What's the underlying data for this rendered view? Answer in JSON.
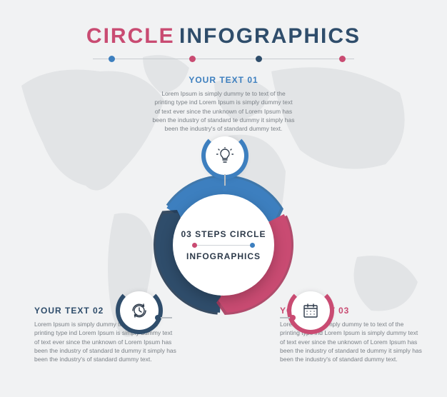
{
  "background_color": "#f1f2f3",
  "map_color": "#c9cccf",
  "title": {
    "word_a": "CIRCLE",
    "word_b": "INFOGRAPHICS",
    "color_a": "#c94b72",
    "color_b": "#2f4d6b",
    "fontsize": 30
  },
  "divider": {
    "line_color": "#c8ccd0",
    "dots": [
      "#3d7fbf",
      "#c94b72",
      "#2f4d6b",
      "#c94b72"
    ]
  },
  "center": {
    "line1": "03 STEPS CIRCLE",
    "line2": "INFOGRAPHICS",
    "text_color": "#2d3a4a",
    "disc_bg": "#ffffff"
  },
  "segments": [
    {
      "title": "YOUR TEXT 01",
      "body": "Lorem Ipsum is simply dummy te to text of the printing type ind Lorem Ipsum is simply dummy text of text ever since the unknown of Lorem Ipsum has been the industry of standard te dummy it simply has been the industry's of standard dummy text.",
      "title_color": "#3d7fbf",
      "arc_color": "#3d7fbf",
      "arc_color_dark": "#2e6aa3",
      "ring_color": "#3d7fbf",
      "icon": "lightbulb",
      "icon_stroke": "#2d3a4a",
      "pin_color": "#3d7fbf"
    },
    {
      "title": "YOUR TEXT 02",
      "body": "Lorem Ipsum is simply dummy te to text of the printing type ind Lorem Ipsum is simply dummy text of text ever since the unknown of Lorem Ipsum has been the industry of standard te dummy it simply has been the industry's of standard dummy text.",
      "title_color": "#2f4d6b",
      "arc_color": "#2f4d6b",
      "arc_color_dark": "#233a52",
      "ring_color": "#2f4d6b",
      "icon": "clock-refresh",
      "icon_stroke": "#2d3a4a",
      "pin_color": "#2f4d6b"
    },
    {
      "title": "YOUR TEXT 03",
      "body": "Lorem Ipsum is simply dummy te to text of the printing type ind Lorem Ipsum is simply dummy text of text ever since the unknown of Lorem Ipsum has been the industry of standard te dummy it simply has been the industry's of standard dummy text.",
      "title_color": "#c94b72",
      "arc_color": "#c94b72",
      "arc_color_dark": "#a93a5d",
      "ring_color": "#c94b72",
      "icon": "calendar",
      "icon_stroke": "#2d3a4a",
      "pin_color": "#c94b72"
    }
  ],
  "typography": {
    "block_title_fontsize": 12,
    "block_body_fontsize": 8.5,
    "body_color": "#7b8187"
  },
  "geometry": {
    "outer_radius": 95,
    "inner_radius": 62,
    "icon_circle_diameter": 54,
    "icon_ring_width": 6,
    "segment_gap_deg": 6
  }
}
